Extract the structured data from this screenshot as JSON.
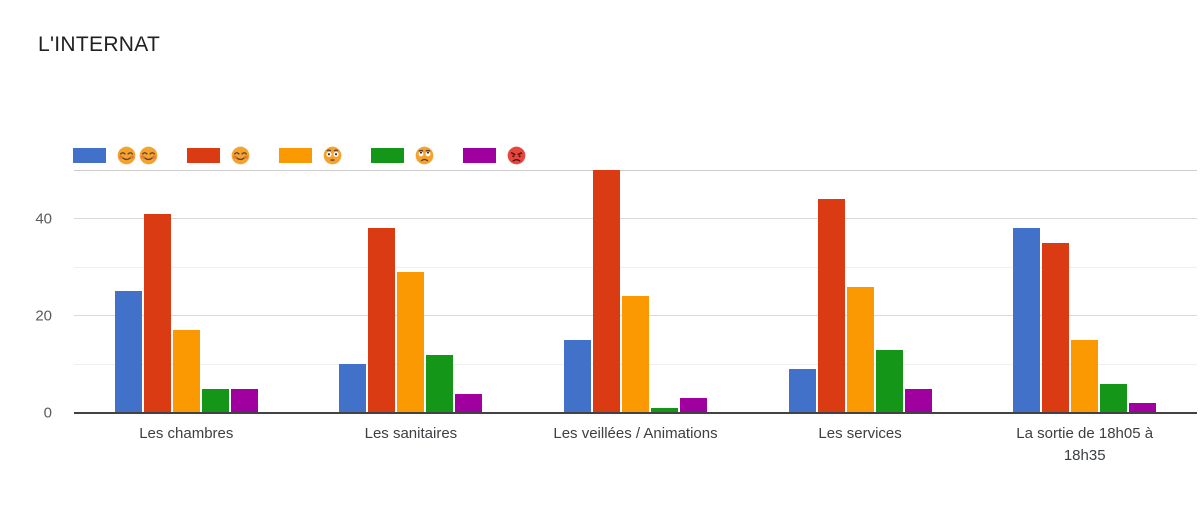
{
  "title": "L'INTERNAT",
  "chart_data": {
    "type": "bar",
    "title": "L'INTERNAT",
    "legend_position": "top",
    "grid": "horizontal",
    "ylim": [
      0,
      50
    ],
    "yticks_labeled": [
      0,
      20,
      40
    ],
    "gridlines": [
      0,
      10,
      20,
      30,
      40,
      50
    ],
    "categories": [
      "Les chambres",
      "Les sanitaires",
      "Les veillées / Animations",
      "Les services",
      "La sortie de 18h05 à 18h35"
    ],
    "category_lines": [
      [
        "Les chambres"
      ],
      [
        "Les sanitaires"
      ],
      [
        "Les veillées / Animations"
      ],
      [
        "Les services"
      ],
      [
        "La sortie de 18h05 à",
        "18h35"
      ]
    ],
    "series": [
      {
        "name": "😊😊",
        "icons": [
          "smiling-face",
          "smiling-face"
        ],
        "color": "#4171C8",
        "values": [
          25,
          10,
          15,
          9,
          38
        ]
      },
      {
        "name": "😊",
        "icons": [
          "smiling-face"
        ],
        "color": "#DB3B12",
        "values": [
          41,
          38,
          50,
          44,
          35
        ]
      },
      {
        "name": "😳",
        "icons": [
          "flushed-face"
        ],
        "color": "#FB9902",
        "values": [
          17,
          29,
          24,
          26,
          15
        ]
      },
      {
        "name": "🙄",
        "icons": [
          "worried-face"
        ],
        "color": "#149618",
        "values": [
          5,
          12,
          1,
          13,
          6
        ]
      },
      {
        "name": "😡",
        "icons": [
          "angry-face"
        ],
        "color": "#A000A0",
        "values": [
          5,
          4,
          3,
          5,
          2
        ]
      }
    ]
  }
}
